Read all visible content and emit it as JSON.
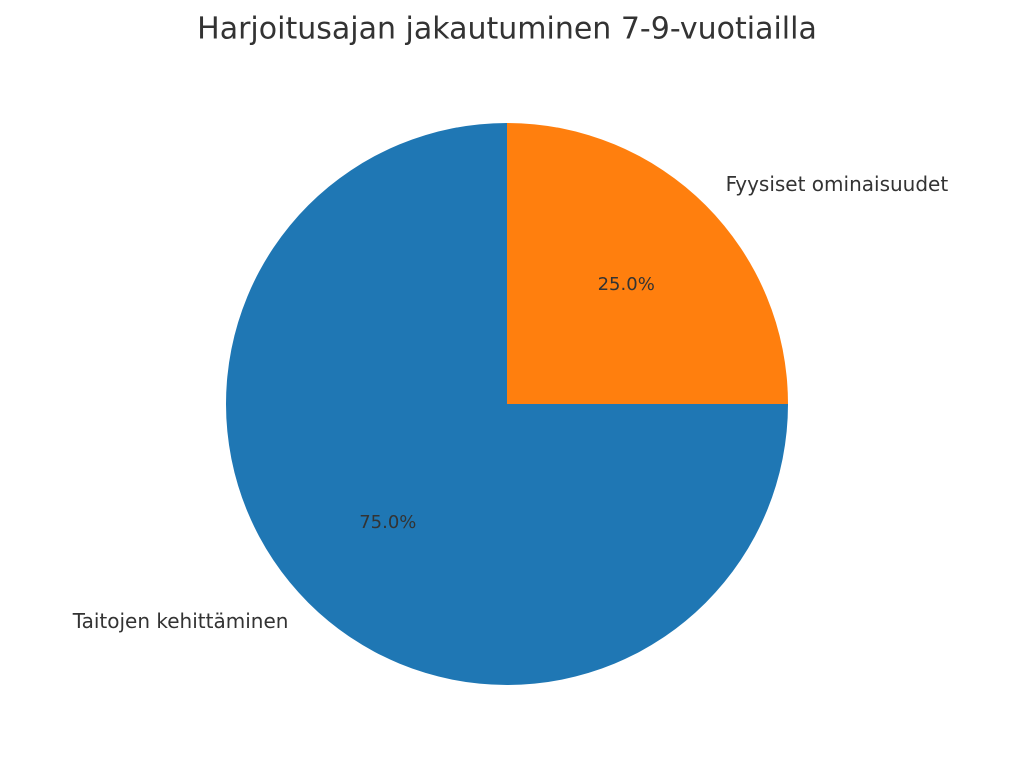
{
  "chart_data": {
    "type": "pie",
    "title": "Harjoitusajan jakautuminen 7-9-vuotiailla",
    "categories": [
      "Taitojen kehittäminen",
      "Fyysiset ominaisuudet"
    ],
    "values": [
      75,
      25
    ],
    "value_labels": [
      "75.0%",
      "25.0%"
    ],
    "colors": [
      "#1f77b4",
      "#ff7f0e"
    ]
  }
}
